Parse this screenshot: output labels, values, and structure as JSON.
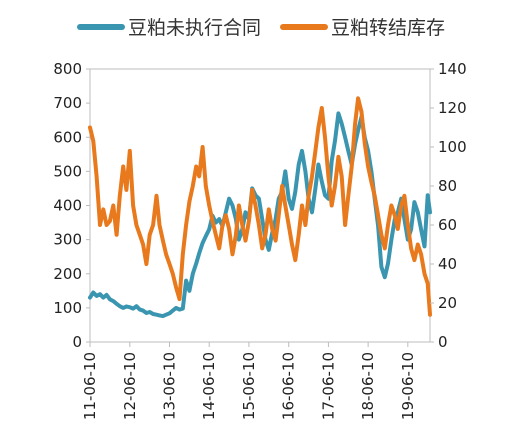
{
  "chart_data": {
    "type": "line",
    "title": "",
    "legend_position": "top",
    "grid": false,
    "x_tick_labels": [
      "11-06-10",
      "12-06-10",
      "13-06-10",
      "14-06-10",
      "15-06-10",
      "16-06-10",
      "17-06-10",
      "18-06-10",
      "19-06-10"
    ],
    "x_range": [
      "2011-06-10",
      "2019-12-31"
    ],
    "y_left": {
      "ylim": [
        0,
        800
      ],
      "ticks": [
        "0",
        "100",
        "200",
        "300",
        "400",
        "500",
        "600",
        "700",
        "800"
      ]
    },
    "y_right": {
      "ylim": [
        0,
        140
      ],
      "ticks": [
        "0",
        "20",
        "40",
        "60",
        "80",
        "100",
        "120",
        "140"
      ]
    },
    "series": [
      {
        "name": "豆粕未执行合同",
        "axis": "left",
        "color": "#3a96b0",
        "points": [
          [
            "2011-06-10",
            130
          ],
          [
            "2011-07-10",
            145
          ],
          [
            "2011-08-10",
            135
          ],
          [
            "2011-09-10",
            140
          ],
          [
            "2011-10-10",
            130
          ],
          [
            "2011-11-10",
            138
          ],
          [
            "2011-12-10",
            125
          ],
          [
            "2012-01-10",
            120
          ],
          [
            "2012-02-10",
            112
          ],
          [
            "2012-03-10",
            105
          ],
          [
            "2012-04-10",
            100
          ],
          [
            "2012-05-10",
            104
          ],
          [
            "2012-06-10",
            102
          ],
          [
            "2012-07-10",
            98
          ],
          [
            "2012-08-10",
            105
          ],
          [
            "2012-09-10",
            95
          ],
          [
            "2012-10-10",
            92
          ],
          [
            "2012-11-10",
            85
          ],
          [
            "2012-12-10",
            88
          ],
          [
            "2013-01-10",
            82
          ],
          [
            "2013-02-10",
            80
          ],
          [
            "2013-03-10",
            78
          ],
          [
            "2013-04-10",
            76
          ],
          [
            "2013-05-10",
            80
          ],
          [
            "2013-06-10",
            84
          ],
          [
            "2013-07-10",
            92
          ],
          [
            "2013-08-10",
            100
          ],
          [
            "2013-09-10",
            95
          ],
          [
            "2013-10-10",
            98
          ],
          [
            "2013-11-10",
            180
          ],
          [
            "2013-12-10",
            150
          ],
          [
            "2014-01-10",
            200
          ],
          [
            "2014-02-10",
            230
          ],
          [
            "2014-03-10",
            260
          ],
          [
            "2014-04-10",
            290
          ],
          [
            "2014-05-10",
            310
          ],
          [
            "2014-06-10",
            330
          ],
          [
            "2014-07-10",
            370
          ],
          [
            "2014-08-10",
            350
          ],
          [
            "2014-09-10",
            360
          ],
          [
            "2014-10-10",
            340
          ],
          [
            "2014-11-10",
            380
          ],
          [
            "2014-12-10",
            420
          ],
          [
            "2015-01-10",
            400
          ],
          [
            "2015-02-10",
            360
          ],
          [
            "2015-03-10",
            300
          ],
          [
            "2015-04-10",
            330
          ],
          [
            "2015-05-10",
            380
          ],
          [
            "2015-06-10",
            360
          ],
          [
            "2015-07-10",
            450
          ],
          [
            "2015-08-10",
            430
          ],
          [
            "2015-09-10",
            420
          ],
          [
            "2015-10-10",
            360
          ],
          [
            "2015-11-10",
            300
          ],
          [
            "2015-12-10",
            270
          ],
          [
            "2016-01-10",
            320
          ],
          [
            "2016-02-10",
            360
          ],
          [
            "2016-03-10",
            420
          ],
          [
            "2016-04-10",
            440
          ],
          [
            "2016-05-10",
            500
          ],
          [
            "2016-06-10",
            420
          ],
          [
            "2016-07-10",
            390
          ],
          [
            "2016-08-10",
            440
          ],
          [
            "2016-09-10",
            520
          ],
          [
            "2016-10-10",
            560
          ],
          [
            "2016-11-10",
            500
          ],
          [
            "2016-12-10",
            420
          ],
          [
            "2017-01-10",
            380
          ],
          [
            "2017-02-10",
            450
          ],
          [
            "2017-03-10",
            520
          ],
          [
            "2017-04-10",
            470
          ],
          [
            "2017-05-10",
            430
          ],
          [
            "2017-06-10",
            420
          ],
          [
            "2017-07-10",
            530
          ],
          [
            "2017-08-10",
            590
          ],
          [
            "2017-09-10",
            670
          ],
          [
            "2017-10-10",
            640
          ],
          [
            "2017-11-10",
            600
          ],
          [
            "2017-12-10",
            560
          ],
          [
            "2018-01-10",
            520
          ],
          [
            "2018-02-10",
            580
          ],
          [
            "2018-03-10",
            620
          ],
          [
            "2018-04-10",
            660
          ],
          [
            "2018-05-10",
            600
          ],
          [
            "2018-06-10",
            560
          ],
          [
            "2018-07-10",
            500
          ],
          [
            "2018-08-10",
            420
          ],
          [
            "2018-09-10",
            340
          ],
          [
            "2018-10-10",
            220
          ],
          [
            "2018-11-10",
            190
          ],
          [
            "2018-12-10",
            230
          ],
          [
            "2019-01-10",
            300
          ],
          [
            "2019-02-10",
            360
          ],
          [
            "2019-03-10",
            380
          ],
          [
            "2019-04-10",
            420
          ],
          [
            "2019-05-10",
            360
          ],
          [
            "2019-06-10",
            300
          ],
          [
            "2019-07-10",
            330
          ],
          [
            "2019-08-10",
            410
          ],
          [
            "2019-09-10",
            380
          ],
          [
            "2019-10-10",
            330
          ],
          [
            "2019-11-10",
            280
          ],
          [
            "2019-12-10",
            430
          ],
          [
            "2019-12-31",
            380
          ]
        ]
      },
      {
        "name": "豆粕转结库存",
        "axis": "right",
        "color": "#e8791c",
        "points": [
          [
            "2011-06-10",
            110
          ],
          [
            "2011-07-10",
            103
          ],
          [
            "2011-08-10",
            85
          ],
          [
            "2011-09-10",
            60
          ],
          [
            "2011-10-10",
            68
          ],
          [
            "2011-11-10",
            60
          ],
          [
            "2011-12-10",
            62
          ],
          [
            "2012-01-10",
            70
          ],
          [
            "2012-02-10",
            55
          ],
          [
            "2012-03-10",
            75
          ],
          [
            "2012-04-10",
            90
          ],
          [
            "2012-05-10",
            78
          ],
          [
            "2012-06-10",
            98
          ],
          [
            "2012-07-10",
            70
          ],
          [
            "2012-08-10",
            60
          ],
          [
            "2012-09-10",
            55
          ],
          [
            "2012-10-10",
            50
          ],
          [
            "2012-11-10",
            40
          ],
          [
            "2012-12-10",
            55
          ],
          [
            "2013-01-10",
            60
          ],
          [
            "2013-02-10",
            75
          ],
          [
            "2013-03-10",
            60
          ],
          [
            "2013-04-10",
            52
          ],
          [
            "2013-05-10",
            45
          ],
          [
            "2013-06-10",
            40
          ],
          [
            "2013-07-10",
            35
          ],
          [
            "2013-08-10",
            28
          ],
          [
            "2013-09-10",
            22
          ],
          [
            "2013-10-10",
            45
          ],
          [
            "2013-11-10",
            60
          ],
          [
            "2013-12-10",
            72
          ],
          [
            "2014-01-10",
            80
          ],
          [
            "2014-02-10",
            90
          ],
          [
            "2014-03-10",
            85
          ],
          [
            "2014-04-10",
            100
          ],
          [
            "2014-05-10",
            80
          ],
          [
            "2014-06-10",
            70
          ],
          [
            "2014-07-10",
            62
          ],
          [
            "2014-08-10",
            55
          ],
          [
            "2014-09-10",
            48
          ],
          [
            "2014-10-10",
            60
          ],
          [
            "2014-11-10",
            65
          ],
          [
            "2014-12-10",
            58
          ],
          [
            "2015-01-10",
            45
          ],
          [
            "2015-02-10",
            55
          ],
          [
            "2015-03-10",
            70
          ],
          [
            "2015-04-10",
            60
          ],
          [
            "2015-05-10",
            52
          ],
          [
            "2015-06-10",
            62
          ],
          [
            "2015-07-10",
            78
          ],
          [
            "2015-08-10",
            70
          ],
          [
            "2015-09-10",
            60
          ],
          [
            "2015-10-10",
            48
          ],
          [
            "2015-11-10",
            55
          ],
          [
            "2015-12-10",
            68
          ],
          [
            "2016-01-10",
            58
          ],
          [
            "2016-02-10",
            52
          ],
          [
            "2016-03-10",
            65
          ],
          [
            "2016-04-10",
            80
          ],
          [
            "2016-05-10",
            70
          ],
          [
            "2016-06-10",
            60
          ],
          [
            "2016-07-10",
            50
          ],
          [
            "2016-08-10",
            42
          ],
          [
            "2016-09-10",
            55
          ],
          [
            "2016-10-10",
            70
          ],
          [
            "2016-11-10",
            60
          ],
          [
            "2016-12-10",
            75
          ],
          [
            "2017-01-10",
            85
          ],
          [
            "2017-02-10",
            98
          ],
          [
            "2017-03-10",
            110
          ],
          [
            "2017-04-10",
            120
          ],
          [
            "2017-05-10",
            105
          ],
          [
            "2017-06-10",
            85
          ],
          [
            "2017-07-10",
            70
          ],
          [
            "2017-08-10",
            80
          ],
          [
            "2017-09-10",
            95
          ],
          [
            "2017-10-10",
            85
          ],
          [
            "2017-11-10",
            60
          ],
          [
            "2017-12-10",
            75
          ],
          [
            "2018-01-10",
            90
          ],
          [
            "2018-02-10",
            112
          ],
          [
            "2018-03-10",
            125
          ],
          [
            "2018-04-10",
            118
          ],
          [
            "2018-05-10",
            102
          ],
          [
            "2018-06-10",
            90
          ],
          [
            "2018-07-10",
            82
          ],
          [
            "2018-08-10",
            75
          ],
          [
            "2018-09-10",
            65
          ],
          [
            "2018-10-10",
            55
          ],
          [
            "2018-11-10",
            48
          ],
          [
            "2018-12-10",
            60
          ],
          [
            "2019-01-10",
            70
          ],
          [
            "2019-02-10",
            65
          ],
          [
            "2019-03-10",
            58
          ],
          [
            "2019-04-10",
            70
          ],
          [
            "2019-05-10",
            75
          ],
          [
            "2019-06-10",
            60
          ],
          [
            "2019-07-10",
            48
          ],
          [
            "2019-08-10",
            42
          ],
          [
            "2019-09-10",
            50
          ],
          [
            "2019-10-10",
            45
          ],
          [
            "2019-11-10",
            35
          ],
          [
            "2019-12-10",
            30
          ],
          [
            "2019-12-31",
            14
          ]
        ]
      }
    ]
  }
}
